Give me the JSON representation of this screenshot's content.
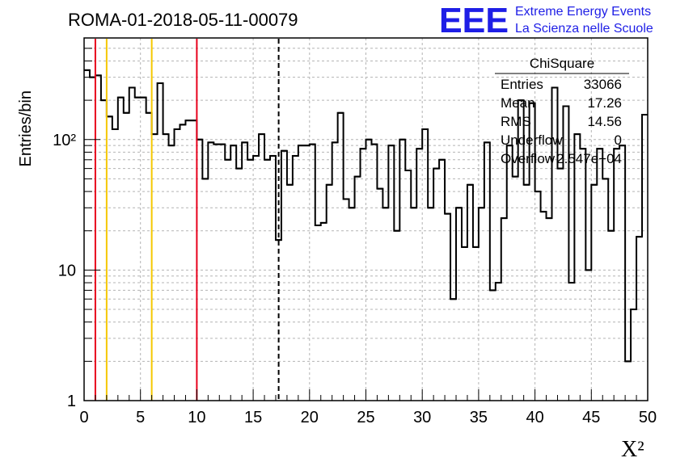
{
  "title": "ROMA-01-2018-05-11-00079",
  "logo": {
    "mark": "EEE",
    "line1": "Extreme Energy Events",
    "line2": "La Scienza nelle Scuole"
  },
  "stats": {
    "name": "ChiSquare",
    "rows": [
      {
        "label": "Entries",
        "value": "33066"
      },
      {
        "label": "Mean",
        "value": "17.26"
      },
      {
        "label": "RMS",
        "value": "14.56"
      },
      {
        "label": "Underflow",
        "value": "0"
      },
      {
        "label": "Overflow",
        "value": "2.547e+04"
      }
    ]
  },
  "chart_data": {
    "type": "histogram",
    "title": "ROMA-01-2018-05-11-00079",
    "xlabel": "X²",
    "ylabel": "Entries/bin",
    "xlim": [
      0,
      50
    ],
    "ylim": [
      1,
      600
    ],
    "y_scale": "log",
    "grid": true,
    "bin_width": 0.5,
    "x_ticks": [
      "0",
      "5",
      "10",
      "15",
      "20",
      "25",
      "30",
      "35",
      "40",
      "45",
      "50"
    ],
    "y_ticks": [
      "1",
      "10",
      "10²"
    ],
    "values": [
      340,
      300,
      310,
      200,
      150,
      120,
      210,
      160,
      250,
      210,
      210,
      160,
      110,
      270,
      110,
      90,
      120,
      130,
      140,
      140,
      100,
      50,
      95,
      92,
      92,
      70,
      90,
      60,
      95,
      70,
      75,
      110,
      70,
      75,
      17,
      82,
      45,
      75,
      90,
      90,
      92,
      22,
      23,
      45,
      95,
      160,
      35,
      30,
      52,
      85,
      100,
      92,
      42,
      30,
      90,
      20,
      100,
      58,
      30,
      85,
      120,
      30,
      60,
      70,
      27,
      6,
      30,
      15,
      45,
      15,
      30,
      95,
      7,
      8,
      25,
      90,
      52,
      200,
      45,
      190,
      40,
      28,
      25,
      250,
      60,
      180,
      8,
      110,
      85,
      10,
      45,
      85,
      50,
      20,
      85,
      90,
      2,
      5,
      18,
      155
    ],
    "vertical_lines": [
      {
        "x": 1,
        "color": "#e8001c",
        "style": "solid"
      },
      {
        "x": 2,
        "color": "#f5c800",
        "style": "solid"
      },
      {
        "x": 6,
        "color": "#f5c800",
        "style": "solid"
      },
      {
        "x": 10,
        "color": "#e8001c",
        "style": "solid"
      },
      {
        "x": 17.26,
        "color": "#000000",
        "style": "dashed"
      }
    ],
    "line_color": "#000000"
  }
}
